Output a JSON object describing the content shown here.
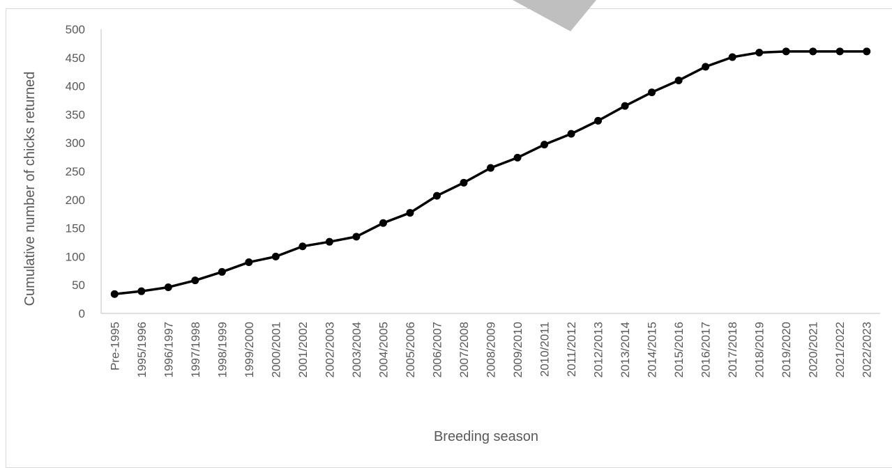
{
  "chart_data": {
    "type": "line",
    "title": "",
    "xlabel": "Breeding season",
    "ylabel": "Cumulative number of chicks returned",
    "ylim": [
      0,
      500
    ],
    "y_ticks": [
      0,
      50,
      100,
      150,
      200,
      250,
      300,
      350,
      400,
      450,
      500
    ],
    "grid": false,
    "legend": "none",
    "categories": [
      "Pre-1995",
      "1995/1996",
      "1996/1997",
      "1997/1998",
      "1998/1999",
      "1999/2000",
      "2000/2001",
      "2001/2002",
      "2002/2003",
      "2003/2004",
      "2004/2005",
      "2005/2006",
      "2006/2007",
      "2007/2008",
      "2008/2009",
      "2009/2010",
      "2010/2011",
      "2011/2012",
      "2012/2013",
      "2013/2014",
      "2014/2015",
      "2015/2016",
      "2016/2017",
      "2017/2018",
      "2018/2019",
      "2019/2020",
      "2020/2021",
      "2021/2022",
      "2022/2023"
    ],
    "series": [
      {
        "values": [
          34,
          39,
          46,
          58,
          73,
          90,
          100,
          118,
          126,
          135,
          159,
          177,
          207,
          230,
          256,
          274,
          297,
          316,
          339,
          365,
          389,
          410,
          434,
          451,
          459,
          461,
          461,
          461,
          461
        ],
        "color": "#000000"
      }
    ]
  },
  "colors": {
    "line": "#000000",
    "axis": "#bfbfbf",
    "text": "#595959",
    "corner_shape": "#bfbfbf"
  }
}
